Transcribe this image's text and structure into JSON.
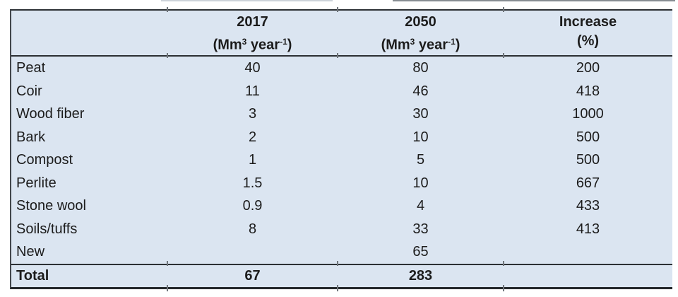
{
  "table": {
    "columns": [
      {
        "title": "",
        "unit_pre": "",
        "unit_sup1": "",
        "unit_mid": "",
        "unit_sup2": "",
        "unit_post": ""
      },
      {
        "title": "2017",
        "unit_pre": "(Mm",
        "unit_sup1": "3",
        "unit_mid": " year",
        "unit_sup2": "-1",
        "unit_post": ")"
      },
      {
        "title": "2050",
        "unit_pre": "(Mm",
        "unit_sup1": "3",
        "unit_mid": " year",
        "unit_sup2": "-1",
        "unit_post": ")"
      },
      {
        "title": "Increase",
        "unit_pre": "(%)",
        "unit_sup1": "",
        "unit_mid": "",
        "unit_sup2": "",
        "unit_post": ""
      }
    ],
    "rows": [
      {
        "label": "Peat",
        "y2017": "40",
        "y2050": "80",
        "increase": "200"
      },
      {
        "label": "Coir",
        "y2017": "11",
        "y2050": "46",
        "increase": "418"
      },
      {
        "label": "Wood fiber",
        "y2017": "3",
        "y2050": "30",
        "increase": "1000"
      },
      {
        "label": "Bark",
        "y2017": "2",
        "y2050": "10",
        "increase": "500"
      },
      {
        "label": "Compost",
        "y2017": "1",
        "y2050": "5",
        "increase": "500"
      },
      {
        "label": "Perlite",
        "y2017": "1.5",
        "y2050": "10",
        "increase": "667"
      },
      {
        "label": "Stone wool",
        "y2017": "0.9",
        "y2050": "4",
        "increase": "433"
      },
      {
        "label": "Soils/tuffs",
        "y2017": "8",
        "y2050": "33",
        "increase": "413"
      },
      {
        "label": "New",
        "y2017": "",
        "y2050": "65",
        "increase": ""
      }
    ],
    "total": {
      "label": "Total",
      "y2017": "67",
      "y2050": "283",
      "increase": ""
    },
    "colors": {
      "fill": "#dbe5f1",
      "rule": "#2c3034",
      "text": "#1c1c1c"
    }
  }
}
